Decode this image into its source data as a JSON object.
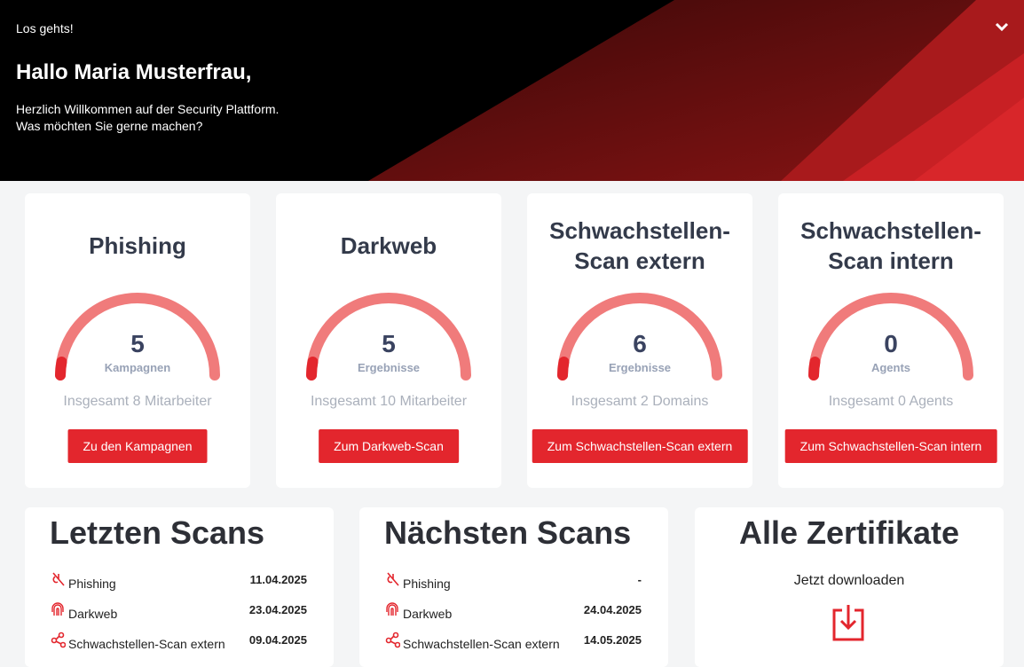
{
  "header": {
    "eyebrow": "Los gehts!",
    "greeting": "Hallo Maria Musterfrau,",
    "lines": [
      "Herzlich Willkommen auf der Security Plattform.",
      "Was möchten Sie gerne machen?"
    ]
  },
  "cards": [
    {
      "title": "Phishing",
      "value": 5,
      "unit": "Kampagnen",
      "total": "Insgesamt 8 Mitarbeiter",
      "button": "Zu den Kampagnen"
    },
    {
      "title": "Darkweb",
      "value": 5,
      "unit": "Ergebnisse",
      "total": "Insgesamt 10 Mitarbeiter",
      "button": "Zum Darkweb-Scan"
    },
    {
      "title": "Schwachstellen-Scan extern",
      "value": 6,
      "unit": "Ergebnisse",
      "total": "Insgesamt 2 Domains",
      "button": "Zum Schwachstellen-Scan extern"
    },
    {
      "title": "Schwachstellen-Scan intern",
      "value": 0,
      "unit": "Agents",
      "total": "Insgesamt 0 Agents",
      "button": "Zum Schwachstellen-Scan intern"
    }
  ],
  "last_scans": {
    "title": "Letzten Scans",
    "rows": [
      [
        "Phishing",
        "11.04.2025"
      ],
      [
        "Darkweb",
        "23.04.2025"
      ],
      [
        "Schwachstellen-Scan extern",
        "09.04.2025"
      ]
    ]
  },
  "next_scans": {
    "title": "Nächsten Scans",
    "rows": [
      [
        "Phishing",
        "-"
      ],
      [
        "Darkweb",
        "24.04.2025"
      ],
      [
        "Schwachstellen-Scan extern",
        "14.05.2025"
      ]
    ]
  },
  "certificates": {
    "title": "Alle Zertifikate",
    "text": "Jetzt downloaden"
  }
}
